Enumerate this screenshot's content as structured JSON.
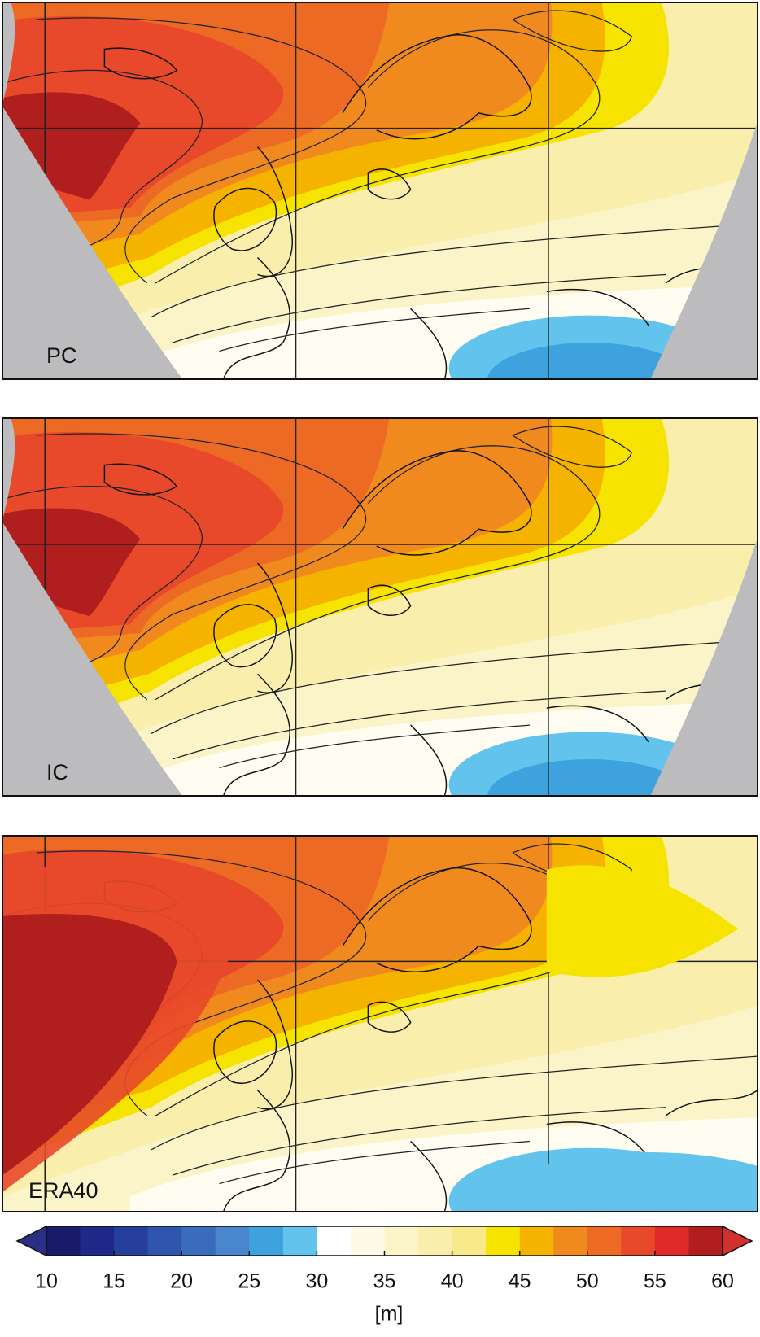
{
  "panels": [
    {
      "label": "PC"
    },
    {
      "label": "IC"
    },
    {
      "label": "ERA40"
    }
  ],
  "colorbar": {
    "range": [
      10,
      60
    ],
    "ticks": [
      10,
      15,
      20,
      25,
      30,
      35,
      40,
      45,
      50,
      55,
      60
    ],
    "label": "[m]",
    "colors": [
      "#1b1b6b",
      "#20288a",
      "#273f9c",
      "#2f55ae",
      "#3a6cbe",
      "#4a86cd",
      "#3da2dd",
      "#62c4ec",
      "#ffffff",
      "#fdfbe8",
      "#fbf4c8",
      "#f9eeac",
      "#f8e98a",
      "#f6e400",
      "#f5b300",
      "#f08a1e",
      "#ec6a24",
      "#e8492a",
      "#df2a28",
      "#b01f1e"
    ],
    "under_color": "#2b2f86",
    "over_color": "#d0312d"
  }
}
